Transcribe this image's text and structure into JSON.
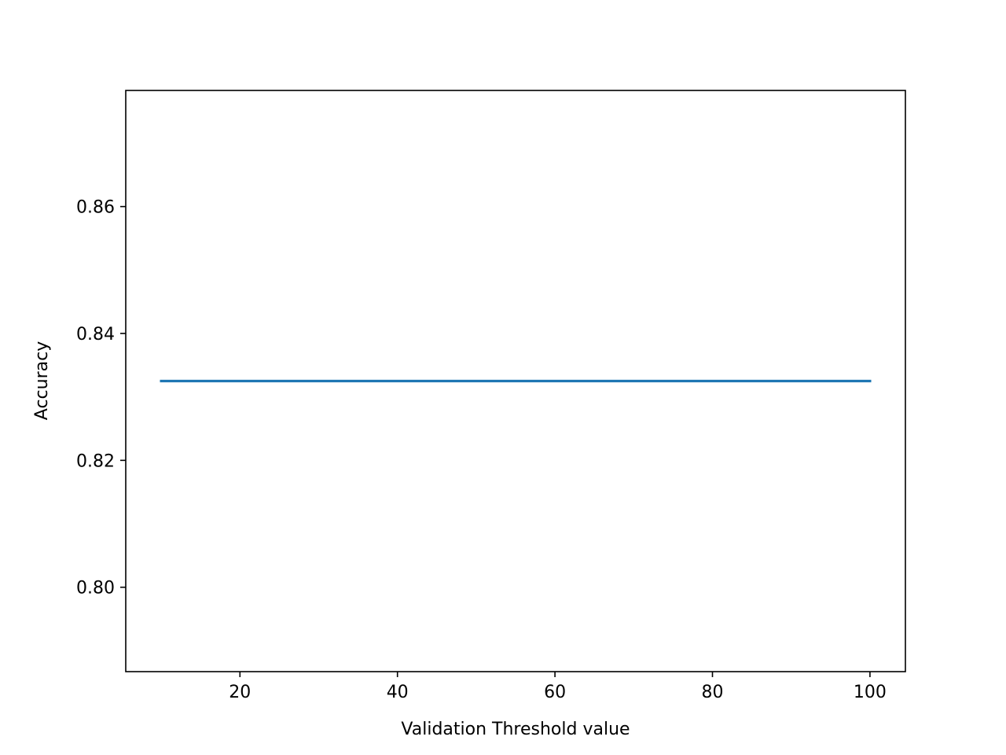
{
  "chart_data": {
    "type": "line",
    "title": "",
    "xlabel": "Validation Threshold value",
    "ylabel": "Accuracy",
    "xlim": [
      5.5,
      104.5
    ],
    "ylim": [
      0.7867,
      0.8783
    ],
    "xticks": [
      20,
      40,
      60,
      80,
      100
    ],
    "xtick_labels": [
      "20",
      "40",
      "60",
      "80",
      "100"
    ],
    "yticks": [
      0.8,
      0.82,
      0.84,
      0.86
    ],
    "ytick_labels": [
      "0.80",
      "0.82",
      "0.84",
      "0.86"
    ],
    "grid": false,
    "series": [
      {
        "color": "#1f77b4",
        "x": [
          10,
          100
        ],
        "y": [
          0.8325,
          0.8325
        ]
      }
    ]
  }
}
